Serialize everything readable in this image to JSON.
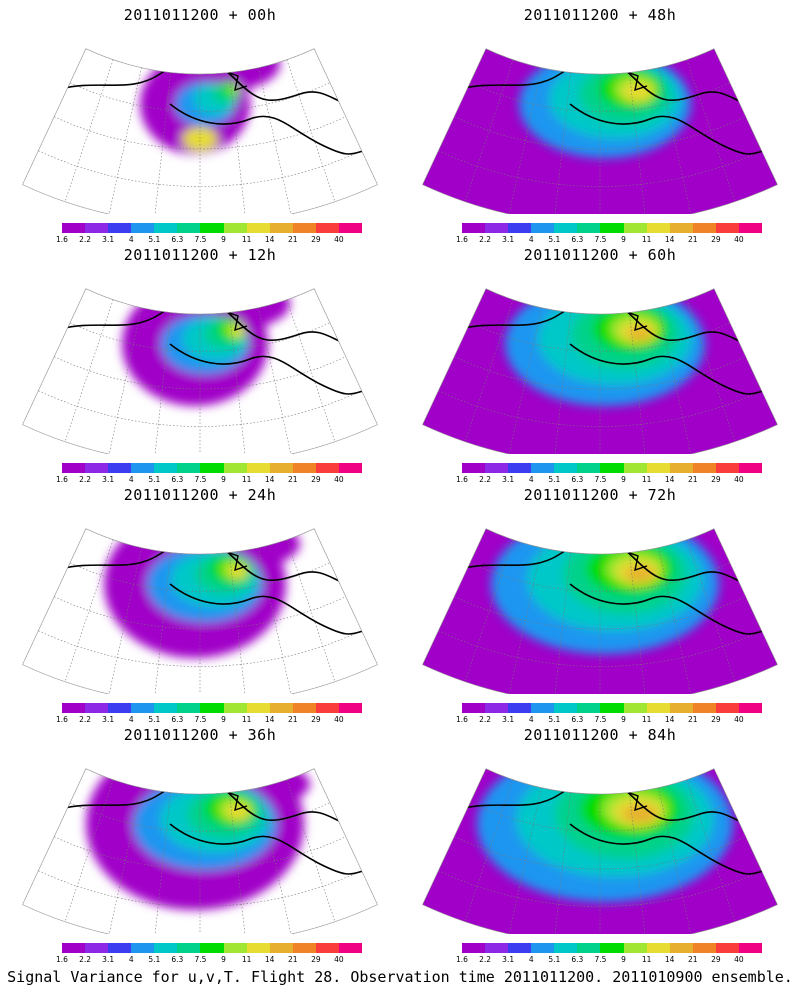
{
  "panels": [
    {
      "title": "2011011200 + 00h",
      "intensity": 0
    },
    {
      "title": "2011011200 + 48h",
      "intensity": 4
    },
    {
      "title": "2011011200 + 12h",
      "intensity": 1
    },
    {
      "title": "2011011200 + 60h",
      "intensity": 5
    },
    {
      "title": "2011011200 + 24h",
      "intensity": 2
    },
    {
      "title": "2011011200 + 72h",
      "intensity": 6
    },
    {
      "title": "2011011200 + 36h",
      "intensity": 3
    },
    {
      "title": "2011011200 + 84h",
      "intensity": 7
    }
  ],
  "colorbar": {
    "labels": [
      "1.6",
      "2.2",
      "3.1",
      "4",
      "5.1",
      "6.3",
      "7.5",
      "9",
      "11",
      "14",
      "21",
      "29",
      "40"
    ],
    "colors": [
      "#a000c8",
      "#8c28e6",
      "#3c3cf0",
      "#1e96f0",
      "#00c8c8",
      "#00d28c",
      "#00dc00",
      "#a0e632",
      "#e6dc32",
      "#e6af2d",
      "#f08228",
      "#fa3c3c",
      "#f00082"
    ]
  },
  "caption": "Signal Variance for u,v,T. Flight 28. Observation time 2011011200. 2011010900 ensemble."
}
